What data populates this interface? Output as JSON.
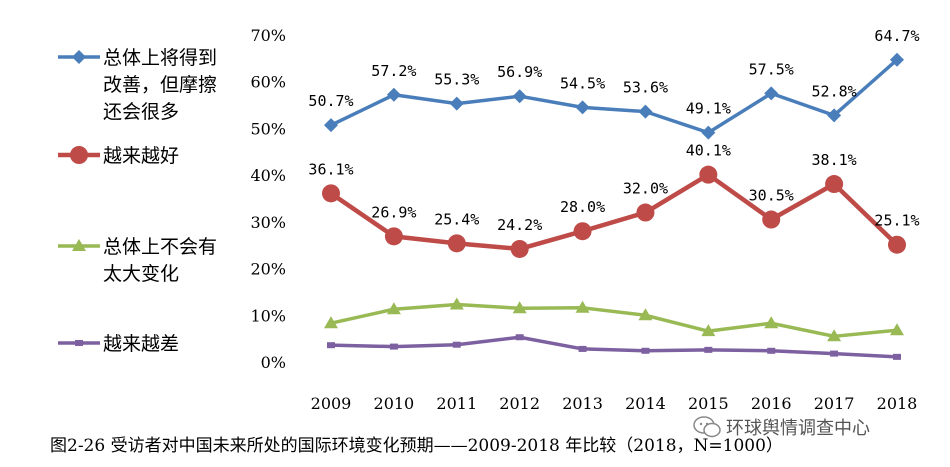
{
  "chart_data": {
    "type": "line",
    "categories": [
      "2009",
      "2010",
      "2011",
      "2012",
      "2013",
      "2014",
      "2015",
      "2016",
      "2017",
      "2018"
    ],
    "ylim": [
      0,
      70
    ],
    "yticks": [
      "0%",
      "10%",
      "20%",
      "30%",
      "40%",
      "50%",
      "60%",
      "70%"
    ],
    "grid": false,
    "legend_position": "left",
    "series": [
      {
        "name": "总体上将得到改善，但摩擦还会很多",
        "name_lines": [
          "总体上将得到",
          "改善，但摩擦",
          "还会很多"
        ],
        "color": "#4a7ebb",
        "marker": "diamond",
        "values": [
          50.7,
          57.2,
          55.3,
          56.9,
          54.5,
          53.6,
          49.1,
          57.5,
          52.8,
          64.7
        ],
        "labels": [
          "50.7%",
          "57.2%",
          "55.3%",
          "56.9%",
          "54.5%",
          "53.6%",
          "49.1%",
          "57.5%",
          "52.8%",
          "64.7%"
        ]
      },
      {
        "name": "越来越好",
        "name_lines": [
          "越来越好"
        ],
        "color": "#be4b48",
        "marker": "circle",
        "values": [
          36.1,
          26.9,
          25.4,
          24.2,
          28.0,
          32.0,
          40.1,
          30.5,
          38.1,
          25.1
        ],
        "labels": [
          "36.1%",
          "26.9%",
          "25.4%",
          "24.2%",
          "28.0%",
          "32.0%",
          "40.1%",
          "30.5%",
          "38.1%",
          "25.1%"
        ]
      },
      {
        "name": "总体上不会有太大变化",
        "name_lines": [
          "总体上不会有",
          "太大变化"
        ],
        "color": "#98b954",
        "marker": "triangle",
        "values": [
          8.3,
          11.3,
          12.3,
          11.5,
          11.6,
          10.0,
          6.6,
          8.3,
          5.5,
          6.8
        ],
        "labels": []
      },
      {
        "name": "越来越差",
        "name_lines": [
          "越来越差"
        ],
        "color": "#7d60a0",
        "marker": "square",
        "values": [
          3.6,
          3.3,
          3.7,
          5.3,
          2.8,
          2.4,
          2.6,
          2.4,
          1.8,
          1.1
        ],
        "labels": []
      }
    ]
  },
  "caption": "图2-26   受访者对中国未来所处的国际环境变化预期——2009-2018 年比较（2018，N=1000）",
  "watermark": "环球舆情调查中心"
}
